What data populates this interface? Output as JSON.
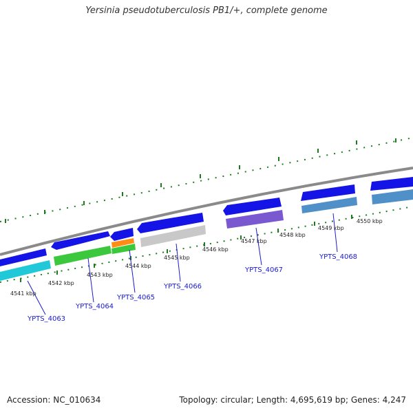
{
  "title": "Yersinia pseudotuberculosis PB1/+, complete genome",
  "footer": {
    "accession": "Accession: NC_010634",
    "topology": "Topology: circular; Length: 4,695,619 bp; Genes: 4,247"
  },
  "colors": {
    "backbone": "#8a8a8a",
    "forward_gene": "#1414e6",
    "tick": "#1e7a1e",
    "label": "#1a1ad0"
  },
  "kbp_labels": [
    {
      "text": "4541 kbp",
      "pos": 4541
    },
    {
      "text": "4542 kbp",
      "pos": 4542
    },
    {
      "text": "4543 kbp",
      "pos": 4543
    },
    {
      "text": "4544 kbp",
      "pos": 4544
    },
    {
      "text": "4545 kbp",
      "pos": 4545
    },
    {
      "text": "4546 kbp",
      "pos": 4546
    },
    {
      "text": "4547 kbp",
      "pos": 4547
    },
    {
      "text": "4548 kbp",
      "pos": 4548
    },
    {
      "text": "4549 kbp",
      "pos": 4549
    },
    {
      "text": "4550 kbp",
      "pos": 4550
    }
  ],
  "gene_labels": [
    {
      "text": "YPTS_4063"
    },
    {
      "text": "YPTS_4064"
    },
    {
      "text": "YPTS_4065"
    },
    {
      "text": "YPTS_4066"
    },
    {
      "text": "YPTS_4067"
    },
    {
      "text": "YPTS_4068"
    }
  ]
}
